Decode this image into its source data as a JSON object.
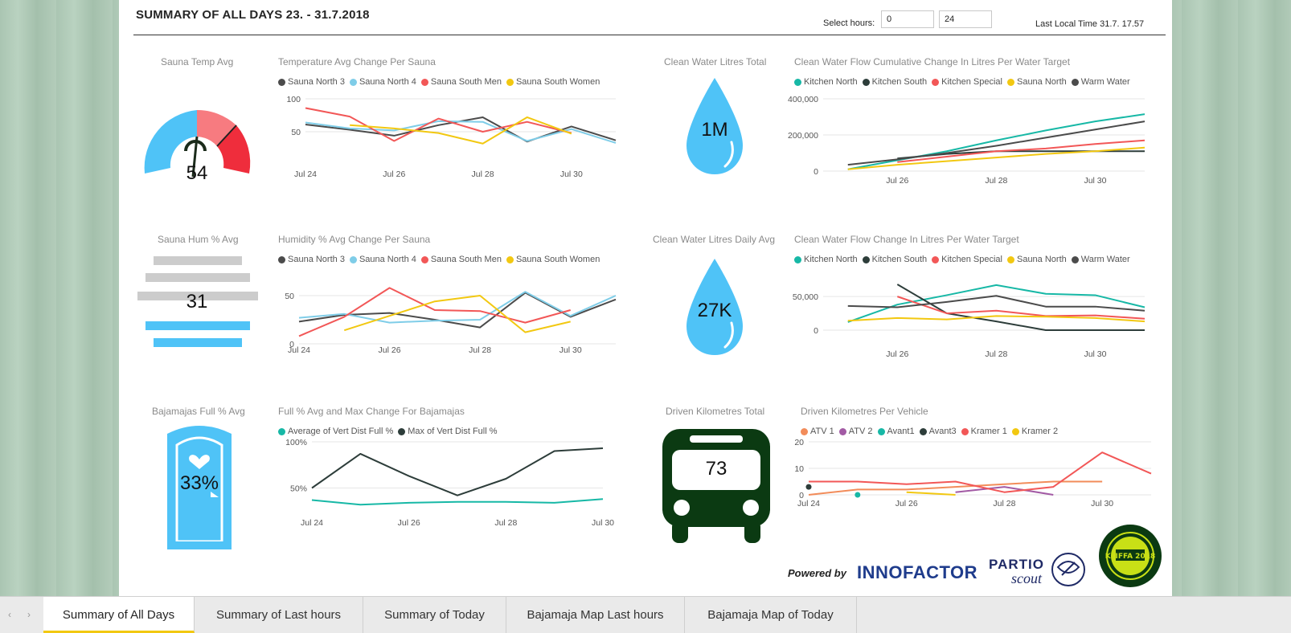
{
  "header": {
    "title": "SUMMARY OF ALL DAYS 23. - 31.7.2018",
    "select_hours_label": "Select hours:",
    "hours_from": "0",
    "hours_to": "24",
    "last_local_time": "Last Local Time 31.7. 17.57"
  },
  "series_names": {
    "sauna": [
      "Sauna North 3",
      "Sauna North 4",
      "Sauna South Men",
      "Sauna South Women"
    ],
    "water": [
      "Kitchen North",
      "Kitchen South",
      "Kitchen Special",
      "Sauna North",
      "Warm Water"
    ],
    "bajamaja": [
      "Average of Vert Dist Full %",
      "Max of Vert Dist Full %"
    ],
    "vehicles": [
      "ATV 1",
      "ATV 2",
      "Avant1",
      "Avant3",
      "Kramer 1",
      "Kramer 2"
    ]
  },
  "colors": {
    "sauna": [
      "#4b4b4b",
      "#7fcde8",
      "#f25757",
      "#f2c811"
    ],
    "water": [
      "#17b8a6",
      "#2d3d3a",
      "#f25757",
      "#f2c811",
      "#4b4b4b"
    ],
    "bajamaja": [
      "#17b8a6",
      "#2d3d3a"
    ],
    "vehicles": [
      "#f28c5a",
      "#a25aa4",
      "#17b8a6",
      "#2d3d3a",
      "#f25757",
      "#f2c811"
    ],
    "gauge_blue": "#4fc3f7",
    "gauge_red": "#ef2d3c",
    "gauge_pink": "#f77b80",
    "drop_blue": "#4fc3f7",
    "bus_green": "#0b3a12"
  },
  "kpi": {
    "sauna_temp": {
      "title": "Sauna Temp Avg",
      "value": "54",
      "gauge_fraction": 0.54
    },
    "sauna_hum": {
      "title": "Sauna Hum % Avg",
      "value": "31"
    },
    "bajamajas": {
      "title": "Bajamajas Full % Avg",
      "value": "33%"
    },
    "water_total": {
      "title": "Clean Water Litres Total",
      "value": "1M"
    },
    "water_daily": {
      "title": "Clean Water Litres Daily Avg",
      "value": "27K"
    },
    "km_total": {
      "title": "Driven Kilometres Total",
      "value": "73"
    }
  },
  "chart_data": [
    {
      "id": "temp",
      "type": "line",
      "title": "Temperature Avg Change Per Sauna",
      "x": [
        24,
        25,
        26,
        27,
        28,
        29,
        30,
        31
      ],
      "xticks": [
        "Jul 24",
        "Jul 26",
        "Jul 28",
        "Jul 30"
      ],
      "yticks": [
        "100",
        "50"
      ],
      "ylim": [
        0,
        100
      ],
      "series": [
        {
          "name": "Sauna North 3",
          "values": [
            61,
            53,
            44,
            60,
            72,
            35,
            58,
            37
          ]
        },
        {
          "name": "Sauna North 4",
          "values": [
            64,
            55,
            52,
            66,
            65,
            36,
            54,
            33
          ]
        },
        {
          "name": "Sauna South Men",
          "values": [
            86,
            73,
            36,
            70,
            50,
            65,
            48,
            null
          ]
        },
        {
          "name": "Sauna South Women",
          "values": [
            null,
            60,
            55,
            48,
            32,
            72,
            47,
            null
          ]
        }
      ]
    },
    {
      "id": "hum",
      "type": "line",
      "title": "Humidity % Avg Change Per Sauna",
      "x": [
        24,
        25,
        26,
        27,
        28,
        29,
        30,
        31
      ],
      "xticks": [
        "Jul 24",
        "Jul 26",
        "Jul 28",
        "Jul 30"
      ],
      "yticks": [
        "50",
        "0"
      ],
      "ylim": [
        0,
        70
      ],
      "series": [
        {
          "name": "Sauna North 3",
          "values": [
            23,
            30,
            32,
            25,
            17,
            53,
            28,
            46
          ]
        },
        {
          "name": "Sauna North 4",
          "values": [
            27,
            31,
            22,
            24,
            25,
            54,
            29,
            50
          ]
        },
        {
          "name": "Sauna South Men",
          "values": [
            8,
            28,
            58,
            35,
            34,
            22,
            35,
            null
          ]
        },
        {
          "name": "Sauna South Women",
          "values": [
            null,
            14,
            29,
            44,
            50,
            12,
            23,
            null
          ]
        }
      ]
    },
    {
      "id": "baja",
      "type": "line",
      "title": "Full % Avg and Max Change For Bajamajas",
      "x": [
        24,
        25,
        26,
        27,
        28,
        29,
        30
      ],
      "xticks": [
        "Jul 24",
        "Jul 26",
        "Jul 28",
        "Jul 30"
      ],
      "yticks": [
        "100%",
        "50%"
      ],
      "ylim": [
        20,
        100
      ],
      "series": [
        {
          "name": "Average of Vert Dist Full %",
          "values": [
            37,
            32,
            34,
            35,
            35,
            34,
            38
          ]
        },
        {
          "name": "Max of Vert Dist Full %",
          "values": [
            50,
            87,
            63,
            42,
            60,
            90,
            93
          ]
        }
      ]
    },
    {
      "id": "wcum",
      "type": "line",
      "title": "Clean Water Flow Cumulative Change In Litres Per Water Target",
      "x": [
        25,
        26,
        27,
        28,
        29,
        30,
        31
      ],
      "xticks": [
        "Jul 26",
        "Jul 28",
        "Jul 30"
      ],
      "yticks": [
        "400,000",
        "200,000",
        "0"
      ],
      "ylim": [
        0,
        400000
      ],
      "series": [
        {
          "name": "Kitchen North",
          "values": [
            10000,
            60000,
            110000,
            170000,
            225000,
            275000,
            315000
          ]
        },
        {
          "name": "Kitchen South",
          "values": [
            null,
            70000,
            95000,
            110000,
            110000,
            110000,
            110000
          ]
        },
        {
          "name": "Kitchen Special",
          "values": [
            null,
            50000,
            80000,
            110000,
            125000,
            150000,
            170000
          ]
        },
        {
          "name": "Sauna North",
          "values": [
            10000,
            35000,
            55000,
            75000,
            95000,
            110000,
            130000
          ]
        },
        {
          "name": "Warm Water",
          "values": [
            35000,
            65000,
            100000,
            140000,
            185000,
            230000,
            275000
          ]
        }
      ]
    },
    {
      "id": "wflow",
      "type": "line",
      "title": "Clean Water Flow Change In Litres Per Water Target",
      "x": [
        25,
        26,
        27,
        28,
        29,
        30,
        31
      ],
      "xticks": [
        "Jul 26",
        "Jul 28",
        "Jul 30"
      ],
      "yticks": [
        "50,000",
        "0"
      ],
      "ylim": [
        0,
        80000
      ],
      "series": [
        {
          "name": "Kitchen North",
          "values": [
            12000,
            38000,
            52000,
            67000,
            54000,
            52000,
            34000
          ]
        },
        {
          "name": "Kitchen South",
          "values": [
            null,
            68000,
            25000,
            13000,
            0,
            0,
            0
          ]
        },
        {
          "name": "Kitchen Special",
          "values": [
            null,
            50000,
            25000,
            29000,
            21000,
            22000,
            17000
          ]
        },
        {
          "name": "Sauna North",
          "values": [
            14000,
            18000,
            16000,
            21000,
            20000,
            18000,
            13000
          ]
        },
        {
          "name": "Warm Water",
          "values": [
            36000,
            34000,
            42000,
            51000,
            35000,
            35000,
            29000
          ]
        }
      ]
    },
    {
      "id": "veh",
      "type": "line",
      "title": "Driven Kilometres Per Vehicle",
      "x": [
        24,
        25,
        26,
        27,
        28,
        29,
        30,
        31
      ],
      "xticks": [
        "Jul 24",
        "Jul 26",
        "Jul 28",
        "Jul 30"
      ],
      "yticks": [
        "20",
        "10",
        "0"
      ],
      "ylim": [
        0,
        20
      ],
      "series": [
        {
          "name": "ATV 1",
          "values": [
            0,
            2,
            2,
            3,
            4,
            5,
            5,
            null
          ]
        },
        {
          "name": "ATV 2",
          "values": [
            null,
            null,
            null,
            1,
            3,
            0,
            null,
            null
          ]
        },
        {
          "name": "Avant1",
          "values": [
            null,
            0,
            null,
            null,
            null,
            null,
            null,
            null
          ]
        },
        {
          "name": "Avant3",
          "values": [
            3,
            null,
            null,
            null,
            null,
            null,
            null,
            null
          ]
        },
        {
          "name": "Kramer 1",
          "values": [
            5,
            5,
            4,
            5,
            1,
            3,
            16,
            8
          ]
        },
        {
          "name": "Kramer 2",
          "values": [
            null,
            null,
            1,
            0,
            null,
            null,
            null,
            null
          ]
        }
      ]
    }
  ],
  "branding": {
    "powered_by": "Powered by",
    "innofactor": "INNOFACTOR",
    "partio": "PARTIO",
    "scout": "scout",
    "seal_text": "KLIFFA 2018"
  },
  "tabs": [
    "Summary of All Days",
    "Summary of Last hours",
    "Summary of Today",
    "Bajamaja Map Last hours",
    "Bajamaja Map of Today"
  ]
}
